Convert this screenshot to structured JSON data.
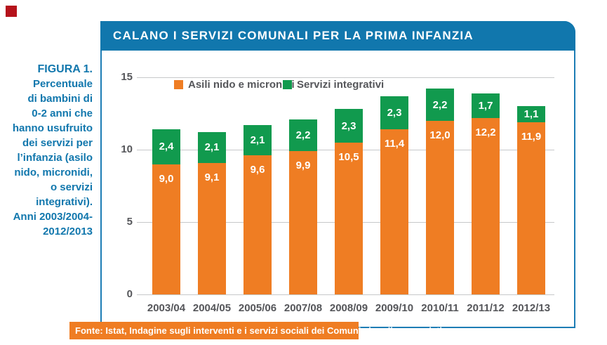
{
  "sidebar": {
    "figure_label": "FIGURA 1.",
    "caption_lines": [
      "Percentuale",
      "di bambini di",
      "0-2 anni che",
      "hanno usufruito",
      "dei servizi per",
      "l’infanzia (asilo",
      "nido, micronidi,",
      "o servizi",
      "integrativi).",
      "Anni 2003/2004-",
      "2012/2013"
    ]
  },
  "header": {
    "title": "CALANO I SERVIZI COMUNALI PER LA PRIMA INFANZIA"
  },
  "chart_data": {
    "type": "bar",
    "stacked": true,
    "title": "CALANO I SERVIZI COMUNALI PER LA PRIMA INFANZIA",
    "categories": [
      "2003/04",
      "2004/05",
      "2005/06",
      "2007/08",
      "2008/09",
      "2009/10",
      "2010/11",
      "2011/12",
      "2012/13"
    ],
    "series": [
      {
        "name": "Asili nido e micronidi",
        "color": "#ef7d23",
        "values": [
          9.0,
          9.1,
          9.6,
          9.9,
          10.5,
          11.4,
          12.0,
          12.2,
          11.9
        ],
        "labels": [
          "9,0",
          "9,1",
          "9,6",
          "9,9",
          "10,5",
          "11,4",
          "12,0",
          "12,2",
          "11,9"
        ]
      },
      {
        "name": "Servizi integrativi",
        "color": "#119a4e",
        "values": [
          2.4,
          2.1,
          2.1,
          2.2,
          2.3,
          2.3,
          2.2,
          1.7,
          1.1
        ],
        "labels": [
          "2,4",
          "2,1",
          "2,1",
          "2,2",
          "2,3",
          "2,3",
          "2,2",
          "1,7",
          "1,1"
        ]
      }
    ],
    "totals": [
      11.4,
      11.2,
      11.7,
      12.1,
      12.8,
      13.7,
      14.2,
      13.9,
      13.0
    ],
    "xlabel": "",
    "ylabel": "",
    "ylim": [
      0,
      15
    ],
    "yticks": [
      0,
      5,
      10,
      15
    ],
    "grid": true,
    "legend_position": "top-center"
  },
  "footer": {
    "source": "Fonte: Istat, Indagine sugli interventi e i servizi sociali dei Comuni singoli e associati"
  },
  "colors": {
    "accent_blue": "#1177ad",
    "border_blue": "#1d7db5",
    "orange": "#ef7d23",
    "green": "#119a4e",
    "axis_text": "#55565a",
    "gridline": "#c7c8ca",
    "marker_red": "#b5121b"
  }
}
